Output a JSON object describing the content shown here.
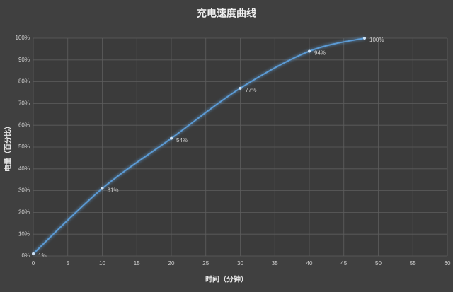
{
  "chart_data": {
    "type": "line",
    "title": "充电速度曲线",
    "x_label": "时间（分钟）",
    "y_label": "电量（百分比）",
    "x": [
      0,
      10,
      20,
      30,
      40,
      48
    ],
    "series": [
      {
        "color": "#5b9bd5",
        "values": [
          1,
          31,
          54,
          77,
          94,
          100
        ],
        "value_labels": [
          "1%",
          "31%",
          "54%",
          "77%",
          "94%",
          "100%"
        ]
      }
    ],
    "xlim": [
      0,
      60
    ],
    "xticks": [
      0,
      5,
      10,
      15,
      20,
      25,
      30,
      35,
      40,
      45,
      50,
      55,
      60
    ],
    "ylim": [
      0,
      100
    ],
    "yticks": [
      {
        "value": 0,
        "label": "0%"
      },
      {
        "value": 10,
        "label": "10%"
      },
      {
        "value": 20,
        "label": "20%"
      },
      {
        "value": 30,
        "label": "30%"
      },
      {
        "value": 40,
        "label": "40%"
      },
      {
        "value": 50,
        "label": "50%"
      },
      {
        "value": 60,
        "label": "60%"
      },
      {
        "value": 70,
        "label": "70%"
      },
      {
        "value": 80,
        "label": "80%"
      },
      {
        "value": 90,
        "label": "90%"
      },
      {
        "value": 100,
        "label": "100%"
      }
    ],
    "grid": true
  }
}
